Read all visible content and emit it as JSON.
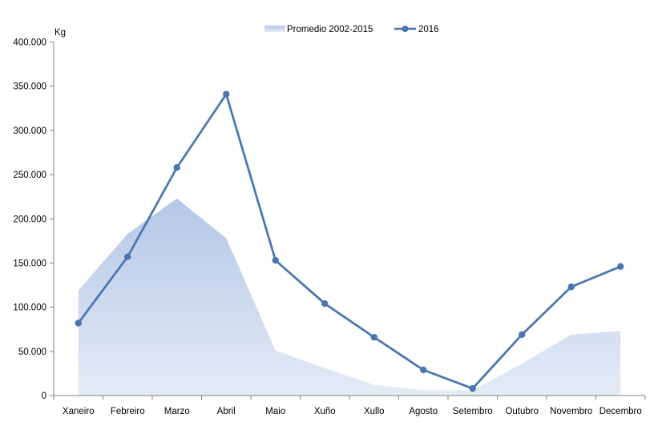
{
  "chart_data": {
    "type": "line",
    "ylabel": "Kg",
    "ylim": [
      0,
      400000
    ],
    "yticks": [
      0,
      50000,
      100000,
      150000,
      200000,
      250000,
      300000,
      350000,
      400000
    ],
    "ytick_labels": [
      "0",
      "50.000",
      "100.000",
      "150.000",
      "200.000",
      "250.000",
      "300.000",
      "350.000",
      "400.000"
    ],
    "categories": [
      "Xaneiro",
      "Febreiro",
      "Marzo",
      "Abril",
      "Maio",
      "Xuño",
      "Xullo",
      "Agosto",
      "Setembro",
      "Outubro",
      "Novembro",
      "Decembro"
    ],
    "legend_position": "top-center",
    "grid": false,
    "series": [
      {
        "name": "Promedio 2002-2015",
        "kind": "area",
        "color": "#b4c7e7",
        "values": [
          119000,
          183000,
          223000,
          178000,
          51000,
          31000,
          12000,
          6000,
          6000,
          36000,
          69000,
          73000
        ]
      },
      {
        "name": "2016",
        "kind": "line",
        "color": "#4a76b0",
        "values": [
          82000,
          157000,
          258000,
          341000,
          153000,
          104000,
          66000,
          29000,
          8000,
          69000,
          123000,
          146000
        ]
      }
    ]
  }
}
